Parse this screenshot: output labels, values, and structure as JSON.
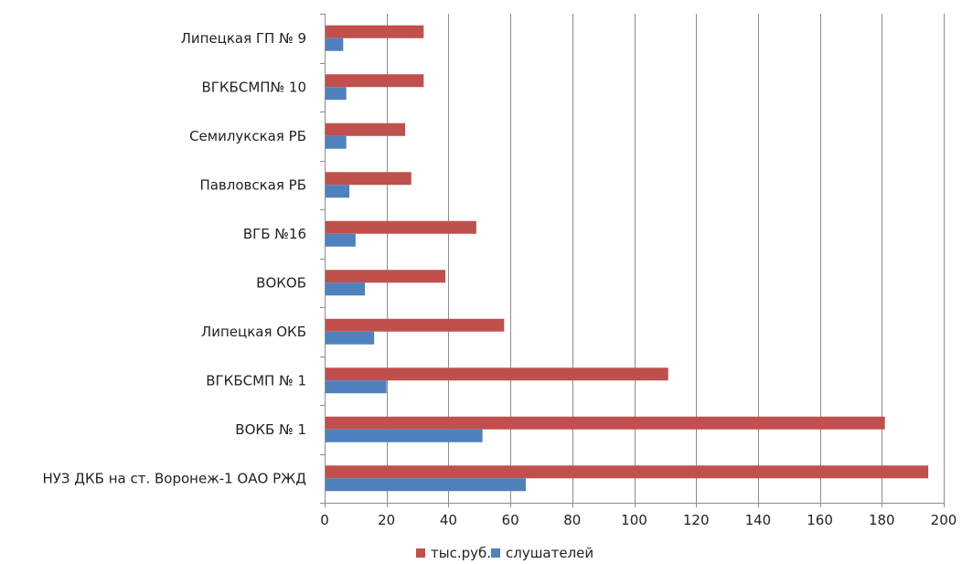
{
  "chart_data": {
    "type": "bar",
    "orientation": "horizontal",
    "categories": [
      "Липецкая ГП № 9",
      "ВГКБСМП№ 10",
      "Семилукская РБ",
      "Павловская РБ",
      "ВГБ №16",
      "ВОКОБ",
      "Липецкая ОКБ",
      "ВГКБСМП № 1",
      "ВОКБ № 1",
      "НУЗ ДКБ на ст. Воронеж-1 ОАО РЖД"
    ],
    "series": [
      {
        "name": "тыс.руб.",
        "color": "#c0504d",
        "values": [
          32,
          32,
          26,
          28,
          49,
          39,
          58,
          111,
          181,
          195
        ]
      },
      {
        "name": "слушателей",
        "color": "#4f81bd",
        "values": [
          6,
          7,
          7,
          8,
          10,
          13,
          16,
          20,
          51,
          65
        ]
      }
    ],
    "xlim": [
      0,
      200
    ],
    "xticks": [
      0,
      20,
      40,
      60,
      80,
      100,
      120,
      140,
      160,
      180,
      200
    ],
    "grid": true,
    "legend_position": "bottom"
  }
}
